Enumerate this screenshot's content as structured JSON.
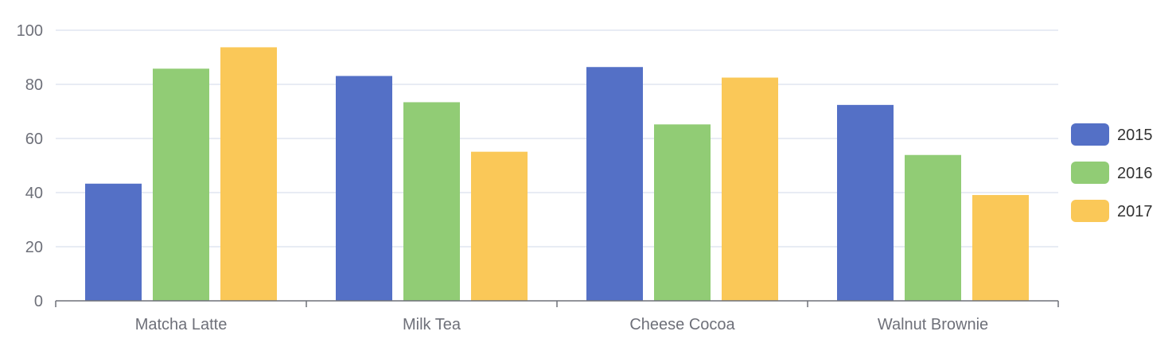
{
  "chart_data": {
    "type": "bar",
    "categories": [
      "Matcha Latte",
      "Milk Tea",
      "Cheese Cocoa",
      "Walnut Brownie"
    ],
    "series": [
      {
        "name": "2015",
        "values": [
          43.3,
          83.1,
          86.4,
          72.4
        ],
        "color": "#5470c6"
      },
      {
        "name": "2016",
        "values": [
          85.8,
          73.4,
          65.2,
          53.9
        ],
        "color": "#91cc75"
      },
      {
        "name": "2017",
        "values": [
          93.7,
          55.1,
          82.5,
          39.1
        ],
        "color": "#fac858"
      }
    ],
    "ylim": [
      0,
      100
    ],
    "yticks": [
      0,
      20,
      40,
      60,
      80,
      100
    ],
    "grid": true,
    "legend_position": "right",
    "title": "",
    "xlabel": "",
    "ylabel": ""
  }
}
